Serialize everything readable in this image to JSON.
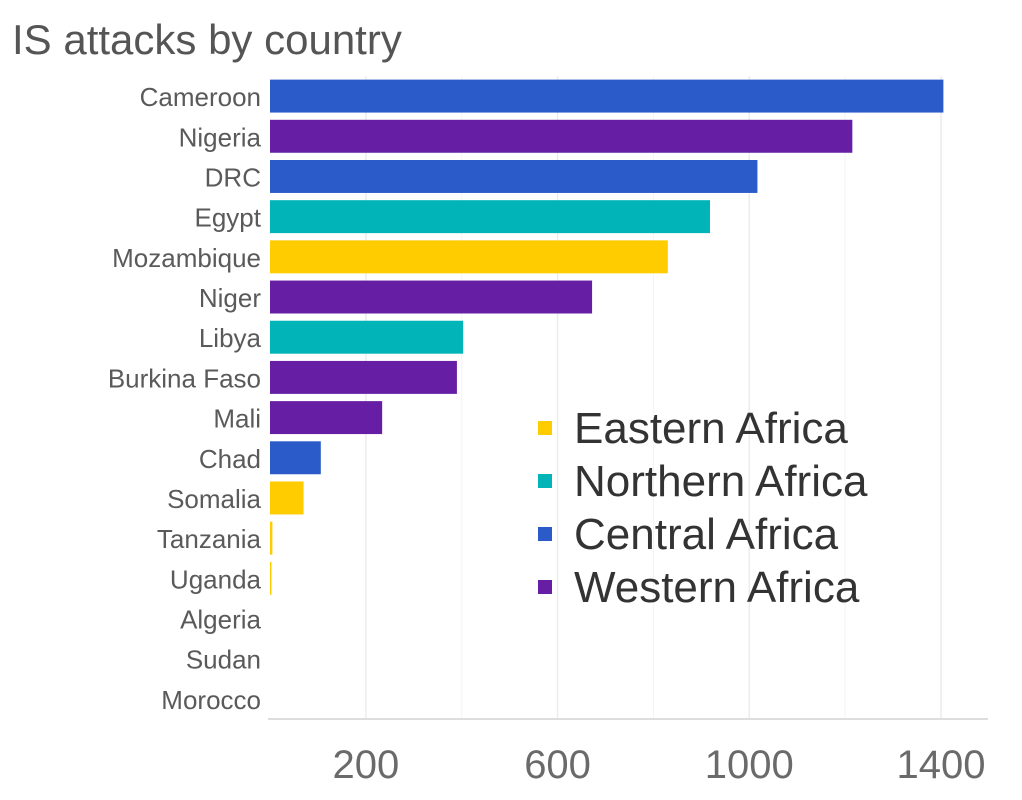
{
  "chart_data": {
    "type": "bar",
    "orientation": "horizontal",
    "title": "IS attacks by country",
    "xlabel": "",
    "ylabel": "",
    "xlim": [
      0,
      1500
    ],
    "x_ticks": [
      200,
      600,
      1000,
      1400
    ],
    "grid": true,
    "legend_position": "center-right",
    "categories": [
      "Cameroon",
      "Nigeria",
      "DRC",
      "Egypt",
      "Mozambique",
      "Niger",
      "Libya",
      "Burkina Faso",
      "Mali",
      "Chad",
      "Somalia",
      "Tanzania",
      "Uganda",
      "Algeria",
      "Sudan",
      "Morocco"
    ],
    "values": [
      1405,
      1215,
      1017,
      918,
      830,
      672,
      403,
      390,
      234,
      106,
      70,
      5,
      3,
      0,
      0,
      0
    ],
    "regions": [
      "Central Africa",
      "Western Africa",
      "Central Africa",
      "Northern Africa",
      "Eastern Africa",
      "Western Africa",
      "Northern Africa",
      "Western Africa",
      "Western Africa",
      "Central Africa",
      "Eastern Africa",
      "Eastern Africa",
      "Eastern Africa",
      "Northern Africa",
      "Northern Africa",
      "Northern Africa"
    ],
    "legend": [
      {
        "name": "Eastern Africa",
        "color": "#ffcc00"
      },
      {
        "name": "Northern Africa",
        "color": "#00b4b8"
      },
      {
        "name": "Central Africa",
        "color": "#2b5bc8"
      },
      {
        "name": "Western Africa",
        "color": "#661fa4"
      }
    ]
  }
}
